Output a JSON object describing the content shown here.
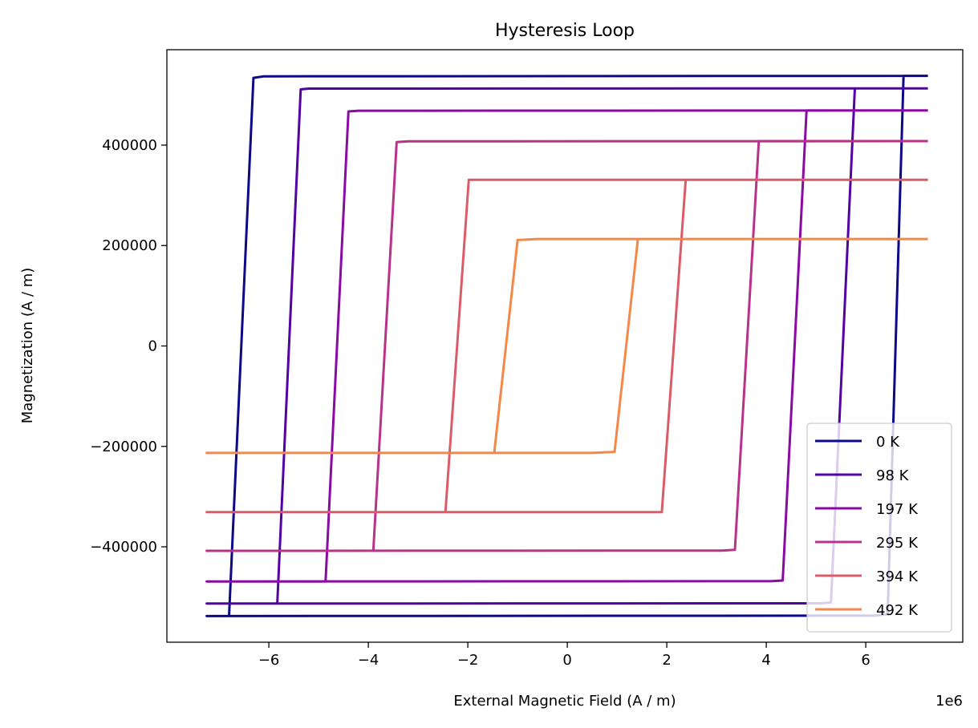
{
  "chart_data": {
    "type": "line",
    "title": "Hysteresis Loop",
    "xlabel": "External Magnetic Field (A / m)",
    "ylabel": "Magnetization (A / m)",
    "x_offset_label": "1e6",
    "xlim": [
      -8050000.0,
      7950000.0
    ],
    "ylim": [
      -590000,
      590000
    ],
    "xticks": [
      -6000000.0,
      -4000000.0,
      -2000000.0,
      0,
      2000000.0,
      4000000.0,
      6000000.0
    ],
    "xtick_labels": [
      "−6",
      "−4",
      "−2",
      "0",
      "2",
      "4",
      "6"
    ],
    "yticks": [
      -400000,
      -200000,
      0,
      200000,
      400000
    ],
    "ytick_labels": [
      "−400000",
      "−200000",
      "0",
      "200000",
      "400000"
    ],
    "grid": false,
    "legend_placement": "lower-right",
    "series": [
      {
        "name": "0 K",
        "color": "#0d0887",
        "x": [
          7250000.0,
          -6100000.0,
          -6310000.0,
          -6800000.0,
          -7250000.0,
          -7250000.0,
          6200000.0,
          6440000.0,
          6760000.0,
          7250000.0
        ],
        "y": [
          538000,
          537000,
          534000,
          -538000,
          -538000,
          -538000,
          -537000,
          -534000,
          538000,
          538000
        ]
      },
      {
        "name": "98 K",
        "color": "#5302a3",
        "x": [
          7250000.0,
          -5200000.0,
          -5360000.0,
          -5830000.0,
          -7250000.0,
          -7250000.0,
          5100000.0,
          5300000.0,
          5780000.0,
          7250000.0
        ],
        "y": [
          513000,
          512500,
          511000,
          -513000,
          -513000,
          -513000,
          -512500,
          -511000,
          513000,
          513000
        ]
      },
      {
        "name": "197 K",
        "color": "#8b0aa5",
        "x": [
          7250000.0,
          -4200000.0,
          -4400000.0,
          -4860000.0,
          -7250000.0,
          -7250000.0,
          4100000.0,
          4330000.0,
          4810000.0,
          7250000.0
        ],
        "y": [
          469000,
          468500,
          467000,
          -469000,
          -469000,
          -469000,
          -468500,
          -467000,
          469000,
          469000
        ]
      },
      {
        "name": "295 K",
        "color": "#b83289",
        "x": [
          7250000.0,
          -3200000.0,
          -3430000.0,
          -3900000.0,
          -7250000.0,
          -7250000.0,
          3100000.0,
          3370000.0,
          3850000.0,
          7250000.0
        ],
        "y": [
          408000,
          407500,
          406000,
          -408000,
          -408000,
          -408000,
          -407500,
          -406000,
          408000,
          408000
        ]
      },
      {
        "name": "394 K",
        "color": "#db5c68",
        "x": [
          7250000.0,
          -1900000.0,
          -1980000.0,
          -2450000.0,
          -7250000.0,
          -7250000.0,
          1800000.0,
          1900000.0,
          2380000.0,
          7250000.0
        ],
        "y": [
          331000,
          331000,
          331000,
          -331000,
          -331000,
          -331000,
          -331000,
          -331000,
          331000,
          331000
        ]
      },
      {
        "name": "492 K",
        "color": "#f48849",
        "x": [
          7250000.0,
          -600000.0,
          -1000000.0,
          -1470000.0,
          -7250000.0,
          -7250000.0,
          500000.0,
          950000.0,
          1420000.0,
          7250000.0
        ],
        "y": [
          213000,
          213000,
          211000,
          -213000,
          -213000,
          -213000,
          -213000,
          -211000,
          213000,
          213000
        ]
      }
    ]
  }
}
